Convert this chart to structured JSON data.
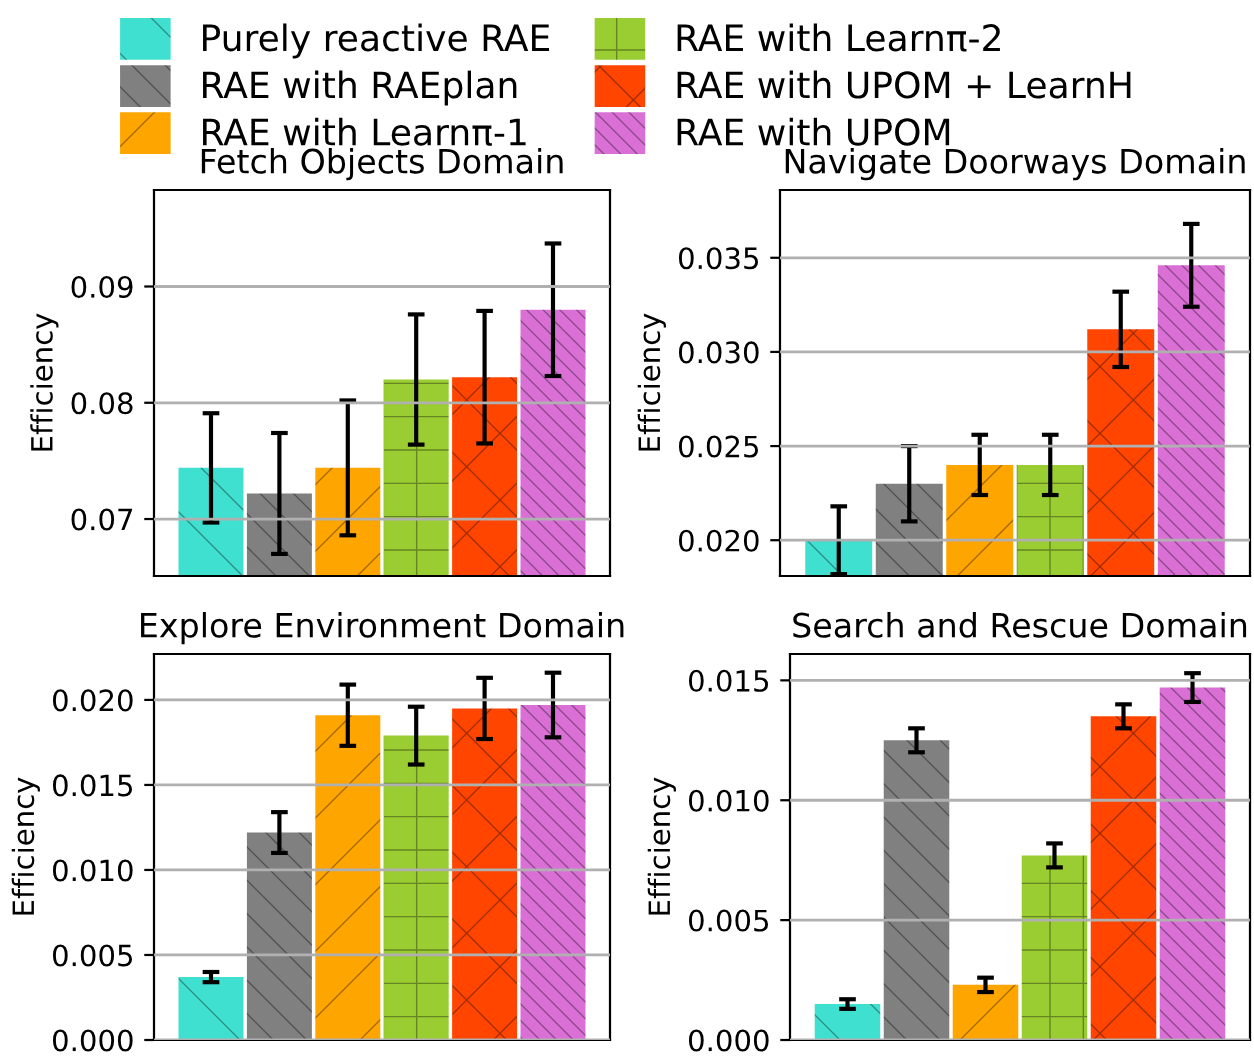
{
  "chart_data": [
    {
      "type": "bar",
      "title": "Fetch Objects Domain",
      "ylabel": "Efficiency",
      "categories": [
        null
      ],
      "ylim": [
        0.0651,
        0.0983
      ],
      "yticks": [
        0.07,
        0.08,
        0.09
      ],
      "grid": "y",
      "legend": "top",
      "series": [
        {
          "name": "Purely reactive RAE",
          "color": "#40e0d0",
          "values": [
            0.0744
          ],
          "errors": [
            0.0047
          ]
        },
        {
          "name": "RAE with RAEplan",
          "color": "#808080",
          "values": [
            0.0722
          ],
          "errors": [
            0.0052
          ]
        },
        {
          "name": "RAE with Learnπ-1",
          "color": "#ffa500",
          "values": [
            0.0744
          ],
          "errors": [
            0.0058
          ]
        },
        {
          "name": "RAE with Learnπ-2",
          "color": "#9acd32",
          "values": [
            0.082
          ],
          "errors": [
            0.0056
          ]
        },
        {
          "name": "RAE with UPOM + LearnH",
          "color": "#ff4500",
          "values": [
            0.0822
          ],
          "errors": [
            0.0057
          ]
        },
        {
          "name": "RAE with UPOM",
          "color": "#da70d6",
          "values": [
            0.088
          ],
          "errors": [
            0.0057
          ]
        }
      ]
    },
    {
      "type": "bar",
      "title": "Navigate Doorways Domain",
      "ylabel": "Efficiency",
      "categories": [
        null
      ],
      "ylim": [
        0.0181,
        0.0386
      ],
      "yticks": [
        {
          "value": 0.02,
          "label": "0.020"
        },
        {
          "value": 0.025,
          "label": "0.025"
        },
        {
          "value": 0.03,
          "label": "0.030"
        },
        {
          "value": 0.035,
          "label": "0.035"
        }
      ],
      "grid": "y",
      "series": [
        {
          "color": "#40e0d0",
          "values": [
            0.02
          ],
          "errors": [
            0.0018
          ]
        },
        {
          "color": "#808080",
          "values": [
            0.023
          ],
          "errors": [
            0.002
          ]
        },
        {
          "color": "#ffa500",
          "values": [
            0.024
          ],
          "errors": [
            0.0016
          ]
        },
        {
          "color": "#9acd32",
          "values": [
            0.024
          ],
          "errors": [
            0.0016
          ]
        },
        {
          "color": "#ff4500",
          "values": [
            0.0312
          ],
          "errors": [
            0.002
          ]
        },
        {
          "color": "#da70d6",
          "values": [
            0.0346
          ],
          "errors": [
            0.0022
          ]
        }
      ]
    },
    {
      "type": "bar",
      "title": "Explore Environment Domain",
      "ylabel": "Efficiency",
      "categories": [
        null
      ],
      "ylim": [
        0,
        0.0227
      ],
      "yticks": [
        {
          "value": 0,
          "label": "0.000"
        },
        {
          "value": 0.005,
          "label": "0.005"
        },
        {
          "value": 0.01,
          "label": "0.010"
        },
        {
          "value": 0.015,
          "label": "0.015"
        },
        {
          "value": 0.02,
          "label": "0.020"
        }
      ],
      "grid": "y",
      "series": [
        {
          "color": "#40e0d0",
          "values": [
            0.0037
          ],
          "errors": [
            0.0003
          ]
        },
        {
          "color": "#808080",
          "values": [
            0.0122
          ],
          "errors": [
            0.0012
          ]
        },
        {
          "color": "#ffa500",
          "values": [
            0.0191
          ],
          "errors": [
            0.0018
          ]
        },
        {
          "color": "#9acd32",
          "values": [
            0.0179
          ],
          "errors": [
            0.0017
          ]
        },
        {
          "color": "#ff4500",
          "values": [
            0.0195
          ],
          "errors": [
            0.0018
          ]
        },
        {
          "color": "#da70d6",
          "values": [
            0.0197
          ],
          "errors": [
            0.0019
          ]
        }
      ]
    },
    {
      "type": "bar",
      "title": "Search and Rescue Domain",
      "ylabel": "Efficiency",
      "categories": [
        null
      ],
      "ylim": [
        0,
        0.0161
      ],
      "yticks": [
        {
          "value": 0,
          "label": "0.000"
        },
        {
          "value": 0.005,
          "label": "0.005"
        },
        {
          "value": 0.01,
          "label": "0.010"
        },
        {
          "value": 0.015,
          "label": "0.015"
        }
      ],
      "grid": "y",
      "series": [
        {
          "color": "#40e0d0",
          "values": [
            0.0015
          ],
          "errors": [
            0.0002
          ]
        },
        {
          "color": "#808080",
          "values": [
            0.0125
          ],
          "errors": [
            0.0005
          ]
        },
        {
          "color": "#ffa500",
          "values": [
            0.0023
          ],
          "errors": [
            0.0003
          ]
        },
        {
          "color": "#9acd32",
          "values": [
            0.0077
          ],
          "errors": [
            0.0005
          ]
        },
        {
          "color": "#ff4500",
          "values": [
            0.0135
          ],
          "errors": [
            0.0005
          ]
        },
        {
          "color": "#da70d6",
          "values": [
            0.0147
          ],
          "errors": [
            0.0006
          ]
        }
      ]
    }
  ]
}
